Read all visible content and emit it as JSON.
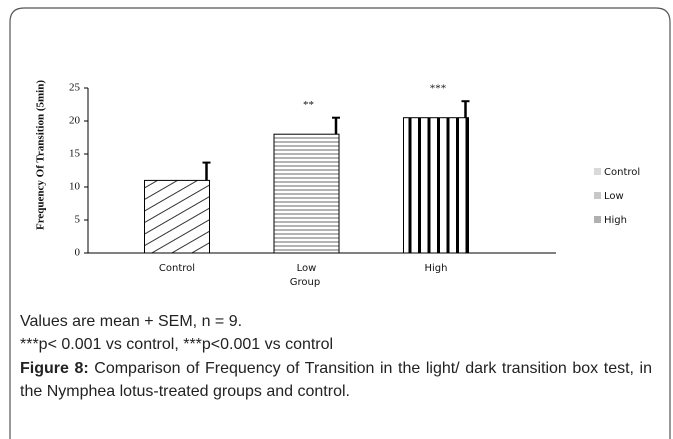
{
  "chart_data": {
    "type": "bar",
    "ylabel": "Frequency Of Transition (5min)",
    "xlabel": "Group",
    "categories": [
      "Control",
      "Low",
      "High"
    ],
    "values": [
      11,
      18,
      20.5
    ],
    "errors": [
      2.7,
      2.5,
      2.5
    ],
    "annotations": [
      {
        "category": "Low",
        "text": "**"
      },
      {
        "category": "High",
        "text": "***"
      }
    ],
    "legend_colors": [
      "#d9d9d9",
      "#c8c8c8",
      "#b0b0b0"
    ],
    "ylim": [
      0,
      25
    ],
    "yticks": [
      0,
      5,
      10,
      15,
      20,
      25
    ],
    "grid": false
  },
  "notes": [
    "Values are mean + SEM, n = 9.",
    "***p< 0.001 vs control, ***p<0.001 vs control"
  ],
  "figure_label": "Figure 8:",
  "figure_caption": "Comparison of Frequency of Transition in the light/ dark transition box test, in the Nymphea lotus-treated groups and control."
}
